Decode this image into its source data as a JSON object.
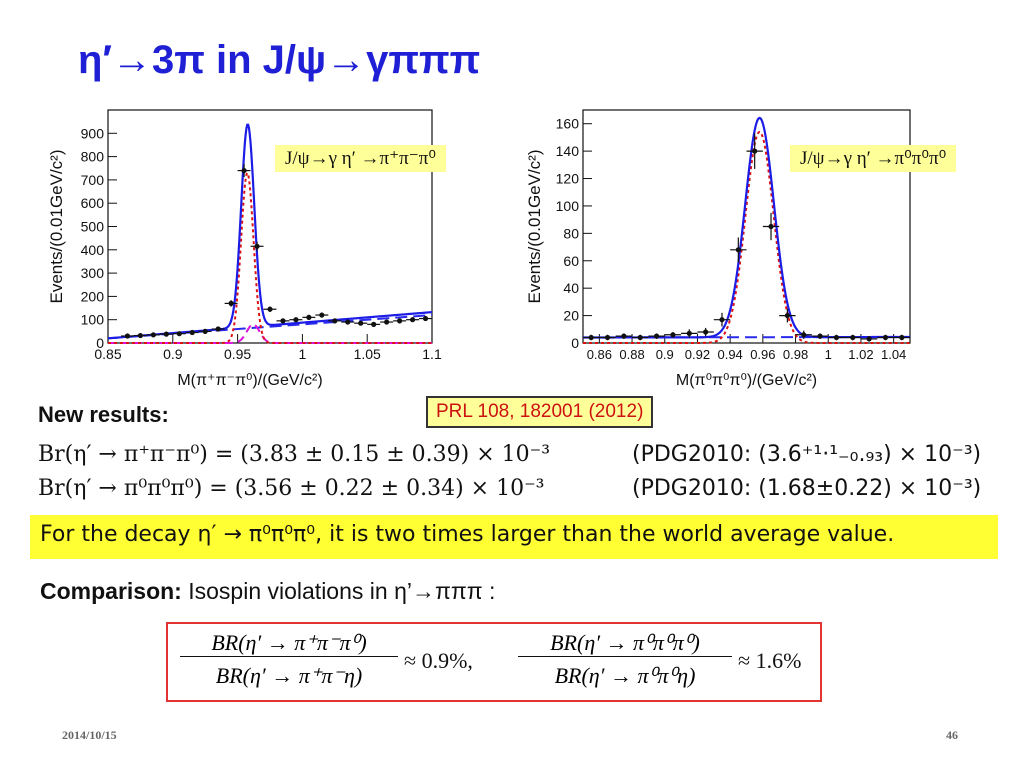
{
  "slide": {
    "title": "η′→3π in J/ψ→γπππ",
    "date": "2014/10/15",
    "page_number": "46"
  },
  "colors": {
    "title": "#1f1fd6",
    "fit_total": "#1c1ce6",
    "signal": "#dd1111",
    "background_fit": "#2a2aee",
    "other": "#dd11dd",
    "highlight": "#ffff99",
    "banner": "#ffff33",
    "box_border": "#e23333"
  },
  "chart_data": [
    {
      "type": "scatter",
      "title": "",
      "label_box": "J/ψ→γ η′ →π⁺π⁻π⁰",
      "xlabel": "M(π⁺π⁻π⁰)/(GeV/c²)",
      "ylabel": "Events/(0.01GeV/c²)",
      "xlim": [
        0.85,
        1.1
      ],
      "ylim": [
        0,
        1000
      ],
      "x_ticks": [
        {
          "v": 0.85,
          "label": "0.85"
        },
        {
          "v": 0.9,
          "label": "0.9"
        },
        {
          "v": 0.95,
          "label": "0.95"
        },
        {
          "v": 1.0,
          "label": "1"
        },
        {
          "v": 1.05,
          "label": "1.05"
        },
        {
          "v": 1.1,
          "label": "1.1"
        }
      ],
      "y_ticks": [
        {
          "v": 0,
          "label": "0"
        },
        {
          "v": 100,
          "label": "100"
        },
        {
          "v": 200,
          "label": "200"
        },
        {
          "v": 300,
          "label": "300"
        },
        {
          "v": 400,
          "label": "400"
        },
        {
          "v": 500,
          "label": "500"
        },
        {
          "v": 600,
          "label": "600"
        },
        {
          "v": 700,
          "label": "700"
        },
        {
          "v": 800,
          "label": "800"
        },
        {
          "v": 900,
          "label": "900"
        }
      ],
      "legend": "none",
      "grid": false,
      "series": [
        {
          "kind": "data",
          "x": [
            0.865,
            0.875,
            0.885,
            0.895,
            0.905,
            0.915,
            0.925,
            0.935,
            0.945,
            0.955,
            0.965,
            0.975,
            0.985,
            0.995,
            1.005,
            1.015,
            1.025,
            1.035,
            1.045,
            1.055,
            1.065,
            1.075,
            1.085,
            1.095
          ],
          "y": [
            30,
            32,
            35,
            38,
            40,
            45,
            50,
            60,
            170,
            740,
            415,
            145,
            95,
            100,
            110,
            120,
            95,
            90,
            85,
            80,
            90,
            95,
            100,
            105
          ],
          "yerr": [
            6,
            6,
            6,
            6,
            7,
            7,
            7,
            8,
            14,
            28,
            20,
            12,
            10,
            10,
            11,
            11,
            10,
            10,
            9,
            9,
            10,
            10,
            10,
            10
          ]
        },
        {
          "kind": "fit_total",
          "mu": 0.9578,
          "sigma": 0.005,
          "amp": 870,
          "bg0": 20,
          "bg1": 450
        },
        {
          "kind": "signal",
          "mu": 0.9575,
          "sigma": 0.0048,
          "amp": 730
        },
        {
          "kind": "background",
          "bg0": 20,
          "bg1": 400
        },
        {
          "kind": "other",
          "mu": 0.962,
          "sigma": 0.005,
          "amp": 80
        }
      ]
    },
    {
      "type": "scatter",
      "title": "",
      "label_box": "J/ψ→γ η′ →π⁰π⁰π⁰",
      "xlabel": "M(π⁰π⁰π⁰)/(GeV/c²)",
      "ylabel": "Events/(0.01GeV/c²)",
      "xlim": [
        0.85,
        1.05
      ],
      "ylim": [
        0,
        170
      ],
      "x_ticks": [
        {
          "v": 0.86,
          "label": "0.86"
        },
        {
          "v": 0.88,
          "label": "0.88"
        },
        {
          "v": 0.9,
          "label": "0.9"
        },
        {
          "v": 0.92,
          "label": "0.92"
        },
        {
          "v": 0.94,
          "label": "0.94"
        },
        {
          "v": 0.96,
          "label": "0.96"
        },
        {
          "v": 0.98,
          "label": "0.98"
        },
        {
          "v": 1.0,
          "label": "1"
        },
        {
          "v": 1.02,
          "label": "1.02"
        },
        {
          "v": 1.04,
          "label": "1.04"
        }
      ],
      "y_ticks": [
        {
          "v": 0,
          "label": "0"
        },
        {
          "v": 20,
          "label": "20"
        },
        {
          "v": 40,
          "label": "40"
        },
        {
          "v": 60,
          "label": "60"
        },
        {
          "v": 80,
          "label": "80"
        },
        {
          "v": 100,
          "label": "100"
        },
        {
          "v": 120,
          "label": "120"
        },
        {
          "v": 140,
          "label": "140"
        },
        {
          "v": 160,
          "label": "160"
        }
      ],
      "legend": "none",
      "grid": false,
      "series": [
        {
          "kind": "data",
          "x": [
            0.855,
            0.865,
            0.875,
            0.885,
            0.895,
            0.905,
            0.915,
            0.925,
            0.935,
            0.945,
            0.955,
            0.965,
            0.975,
            0.985,
            0.995,
            1.005,
            1.015,
            1.025,
            1.035,
            1.045
          ],
          "y": [
            4,
            4,
            5,
            4,
            5,
            6,
            7,
            8,
            17,
            68,
            140,
            85,
            20,
            6,
            5,
            4,
            4,
            3,
            4,
            4
          ],
          "yerr": [
            2,
            2,
            2,
            2,
            2,
            2,
            3,
            3,
            5,
            9,
            13,
            10,
            5,
            3,
            2,
            2,
            2,
            2,
            2,
            2
          ]
        },
        {
          "kind": "fit_total",
          "mu": 0.958,
          "sigma": 0.0088,
          "amp": 160,
          "bg0": 4,
          "bg1": 2
        },
        {
          "kind": "signal",
          "mu": 0.958,
          "sigma": 0.0086,
          "amp": 154
        },
        {
          "kind": "background",
          "bg0": 4,
          "bg1": 2
        }
      ]
    }
  ],
  "content": {
    "reference": "PRL 108, 182001 (2012)",
    "new_results_label": "New results:",
    "result1_lhs": "Br(η′  → π⁺π⁻π⁰) = (3.83 ± 0.15 ± 0.39) × 10⁻³",
    "result1_pdg": "(PDG2010: (3.6⁺¹·¹₋₀.₉₃) × 10⁻³)",
    "result2_lhs": "Br(η′  → π⁰π⁰π⁰)  = (3.56 ± 0.22 ± 0.34) × 10⁻³",
    "result2_pdg": "(PDG2010: (1.68±0.22) × 10⁻³)",
    "banner": "For the decay η′  → π⁰π⁰π⁰, it is two times larger than the world average value.",
    "comparison_label": "Comparison:",
    "comparison_text": "Isospin violations in η’→πππ :",
    "ratio1_num": "BR(η′ → π⁺π⁻π⁰)",
    "ratio1_den": "BR(η′ → π⁺π⁻η)",
    "ratio1_val": "≈ 0.9%,",
    "ratio2_num": "BR(η′ → π⁰π⁰π⁰)",
    "ratio2_den": "BR(η′ → π⁰π⁰η)",
    "ratio2_val": "≈ 1.6%"
  }
}
